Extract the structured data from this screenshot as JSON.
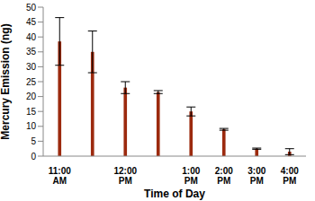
{
  "chart_data": {
    "type": "bar",
    "x_label": "Time of Day",
    "y_label": "Mercury Emission (ng)",
    "categories": [
      "11:00 AM",
      null,
      "12:00 PM",
      null,
      "1:00 PM",
      "2:00 PM",
      "3:00 PM",
      "4:00 PM"
    ],
    "values": [
      38.5,
      35,
      23,
      21.5,
      15,
      9,
      2.5,
      1.5
    ],
    "errors": [
      8,
      7,
      2,
      0.5,
      1.5,
      0.3,
      0.2,
      1
    ],
    "color": "#9c2a0e",
    "ylim": [
      0,
      50
    ],
    "yticks": [
      0,
      5,
      10,
      15,
      20,
      25,
      30,
      35,
      40,
      45,
      50
    ],
    "grid": false
  }
}
